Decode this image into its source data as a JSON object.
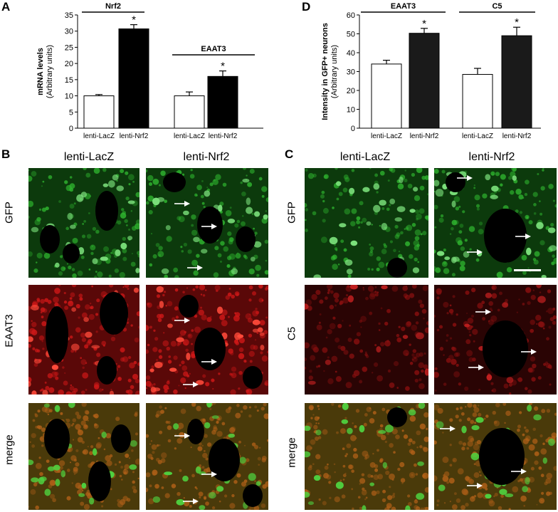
{
  "panels": {
    "A": {
      "letter": "A"
    },
    "B": {
      "letter": "B",
      "col_left": "lenti-LacZ",
      "col_right": "lenti-Nrf2",
      "rows": [
        "GFP",
        "EAAT3",
        "merge"
      ]
    },
    "C": {
      "letter": "C",
      "col_left": "lenti-LacZ",
      "col_right": "lenti-Nrf2",
      "rows": [
        "GFP",
        "C5",
        "merge"
      ]
    },
    "D": {
      "letter": "D"
    }
  },
  "colors": {
    "lacz": "#ffffff",
    "nrf2": "#000000",
    "bar_d": "#1a1a1a",
    "gfp": "#1ea51e",
    "red": "#c81414",
    "merge_red": "#c0501a"
  },
  "chart_data": [
    {
      "id": "A",
      "type": "bar",
      "ylabel": "mRNA levels",
      "ylabel_sub": "(Arbitrary units)",
      "ylim": [
        0,
        35
      ],
      "yticks": [
        0,
        5,
        10,
        15,
        20,
        25,
        30,
        35
      ],
      "groups": [
        {
          "title": "Nrf2",
          "bars": [
            {
              "label": "lenti-LacZ",
              "value": 10.0,
              "err": 0.4,
              "star": ""
            },
            {
              "label": "lenti-Nrf2",
              "value": 30.7,
              "err": 1.3,
              "star": "*"
            }
          ]
        },
        {
          "title": "EAAT3",
          "bars": [
            {
              "label": "lenti-LacZ",
              "value": 10.0,
              "err": 1.2,
              "star": ""
            },
            {
              "label": "lenti-Nrf2",
              "value": 16.0,
              "err": 1.7,
              "star": "*"
            }
          ]
        }
      ]
    },
    {
      "id": "D",
      "type": "bar",
      "ylabel": "Intensity in GFP+ neurons",
      "ylabel_sub": "(Arbitrary units)",
      "ylim": [
        0,
        60
      ],
      "yticks": [
        0,
        10,
        20,
        30,
        40,
        50,
        60
      ],
      "groups": [
        {
          "title": "EAAT3",
          "bars": [
            {
              "label": "lenti-LacZ",
              "value": 34.0,
              "err": 2.0,
              "star": ""
            },
            {
              "label": "lenti-Nrf2",
              "value": 50.3,
              "err": 2.6,
              "star": "*"
            }
          ]
        },
        {
          "title": "C5",
          "bars": [
            {
              "label": "lenti-LacZ",
              "value": 28.5,
              "err": 3.2,
              "star": ""
            },
            {
              "label": "lenti-Nrf2",
              "value": 49.0,
              "err": 4.5,
              "star": "*"
            }
          ]
        }
      ]
    }
  ]
}
